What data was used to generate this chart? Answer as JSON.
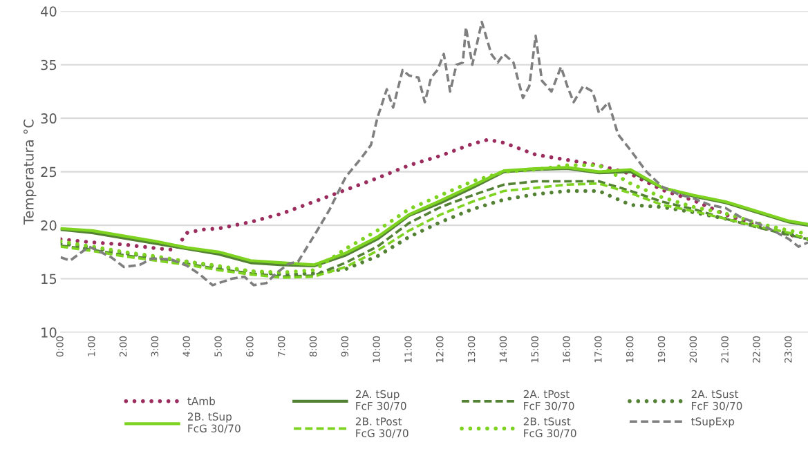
{
  "chart_data": {
    "type": "line",
    "ylabel": "Temperatura °C",
    "x": [
      0,
      1,
      2,
      3,
      4,
      5,
      6,
      7,
      8,
      9,
      10,
      11,
      12,
      13,
      14,
      15,
      16,
      17,
      18,
      19,
      20,
      21,
      22,
      23,
      23.6
    ],
    "xlim": [
      0,
      23.6
    ],
    "xticks": [
      {
        "value": 0,
        "label": "0:00"
      },
      {
        "value": 1,
        "label": "1:00"
      },
      {
        "value": 2,
        "label": "2:00"
      },
      {
        "value": 3,
        "label": "3:00"
      },
      {
        "value": 4,
        "label": "4:00"
      },
      {
        "value": 5,
        "label": "5:00"
      },
      {
        "value": 6,
        "label": "6:00"
      },
      {
        "value": 7,
        "label": "7:00"
      },
      {
        "value": 8,
        "label": "8:00"
      },
      {
        "value": 9,
        "label": "9:00"
      },
      {
        "value": 10,
        "label": "10:00"
      },
      {
        "value": 11,
        "label": "11:00"
      },
      {
        "value": 12,
        "label": "12:00"
      },
      {
        "value": 13,
        "label": "13:00"
      },
      {
        "value": 14,
        "label": "14:00"
      },
      {
        "value": 15,
        "label": "15:00"
      },
      {
        "value": 16,
        "label": "16:00"
      },
      {
        "value": 17,
        "label": "17:00"
      },
      {
        "value": 18,
        "label": "18:00"
      },
      {
        "value": 19,
        "label": "19:00"
      },
      {
        "value": 20,
        "label": "20:00"
      },
      {
        "value": 21,
        "label": "21:00"
      },
      {
        "value": 22,
        "label": "22:00"
      },
      {
        "value": 23,
        "label": "23:00"
      }
    ],
    "ylim": [
      10,
      40
    ],
    "yticks": [
      10,
      15,
      20,
      25,
      30,
      35,
      40
    ],
    "grid": "y",
    "legend": "bottom",
    "series": [
      {
        "name": "tAmb",
        "color": "#9b2d5e",
        "line_style": "dotted",
        "x": [
          0,
          1,
          2,
          3,
          3.6,
          4,
          4.5,
          5,
          6,
          7,
          8,
          9,
          10,
          11,
          12,
          13,
          13.5,
          14,
          15,
          16,
          17,
          18,
          19,
          20,
          21,
          22,
          23,
          23.6
        ],
        "values": [
          18.7,
          18.4,
          18.2,
          17.85,
          17.7,
          19.3,
          19.6,
          19.7,
          20.3,
          21.1,
          22.2,
          23.3,
          24.4,
          25.6,
          26.5,
          27.6,
          28.0,
          27.7,
          26.6,
          26.1,
          25.6,
          24.8,
          23.3,
          22.3,
          21.0,
          20.0,
          19.1,
          18.8
        ]
      },
      {
        "name": "2A. tSup\nFcF 30/70",
        "color": "#548235",
        "line_style": "solid",
        "values": [
          19.6,
          19.3,
          18.8,
          18.3,
          17.8,
          17.3,
          16.5,
          16.3,
          16.2,
          17.2,
          18.7,
          20.9,
          22.1,
          23.5,
          25.0,
          25.2,
          25.3,
          24.9,
          25.0,
          23.5,
          22.7,
          22.1,
          21.2,
          20.3,
          20.0
        ]
      },
      {
        "name": "2A. tPost\nFcF 30/70",
        "color": "#548235",
        "line_style": "dashed",
        "values": [
          18.1,
          17.7,
          17.2,
          16.8,
          16.4,
          15.9,
          15.5,
          15.2,
          15.3,
          16.5,
          18.0,
          20.2,
          21.7,
          22.8,
          23.8,
          24.1,
          24.1,
          24.1,
          23.2,
          22.2,
          21.5,
          20.6,
          19.8,
          19.1,
          18.7
        ]
      },
      {
        "name": "2A. tSust\nFcF 30/70",
        "color": "#548235",
        "line_style": "dotted",
        "values": [
          18.3,
          17.9,
          17.4,
          17.0,
          16.6,
          16.1,
          15.7,
          15.4,
          15.5,
          15.9,
          17.1,
          18.9,
          20.3,
          21.5,
          22.4,
          22.9,
          23.2,
          23.2,
          21.9,
          21.7,
          21.2,
          20.6,
          19.9,
          19.2,
          18.7
        ]
      },
      {
        "name": "2B. tSup\nFcG 30/70",
        "color": "#7ed321",
        "line_style": "solid",
        "values": [
          19.7,
          19.5,
          19.0,
          18.5,
          17.9,
          17.5,
          16.7,
          16.5,
          16.3,
          17.4,
          18.9,
          21.0,
          22.3,
          23.7,
          25.1,
          25.3,
          25.4,
          25.0,
          25.2,
          23.5,
          22.8,
          22.2,
          21.3,
          20.4,
          20.1
        ]
      },
      {
        "name": "2B. tPost\nFcG 30/70",
        "color": "#7ed321",
        "line_style": "dashed",
        "values": [
          18.0,
          17.6,
          17.1,
          16.7,
          16.3,
          15.8,
          15.4,
          15.1,
          15.2,
          16.1,
          17.6,
          19.5,
          21.0,
          22.2,
          23.2,
          23.5,
          23.8,
          23.9,
          23.0,
          21.9,
          21.3,
          20.6,
          19.9,
          19.3,
          18.7
        ]
      },
      {
        "name": "2B. tSust\nFcG 30/70",
        "color": "#7ed321",
        "line_style": "dotted",
        "values": [
          18.5,
          18.0,
          17.5,
          17.1,
          16.6,
          16.2,
          15.7,
          15.6,
          15.8,
          17.8,
          19.5,
          21.5,
          22.8,
          24.1,
          25.0,
          25.2,
          25.6,
          25.6,
          23.9,
          22.6,
          21.7,
          21.1,
          20.2,
          19.5,
          19.2
        ]
      },
      {
        "name": "tSupExp",
        "color": "#7f7f7f",
        "line_style": "dashed",
        "x": [
          0,
          0.3,
          0.9,
          1.2,
          1.6,
          2.0,
          2.5,
          2.9,
          3.5,
          4.0,
          4.4,
          4.8,
          5.4,
          5.8,
          6.1,
          6.5,
          6.8,
          7.2,
          7.5,
          8.0,
          8.5,
          9.0,
          9.5,
          9.8,
          10.0,
          10.3,
          10.5,
          10.8,
          11.0,
          11.3,
          11.5,
          11.7,
          11.9,
          12.1,
          12.3,
          12.5,
          12.7,
          12.8,
          13.0,
          13.3,
          13.6,
          13.8,
          14.0,
          14.3,
          14.6,
          14.8,
          15.0,
          15.2,
          15.5,
          15.8,
          16.0,
          16.2,
          16.5,
          16.8,
          17.0,
          17.3,
          17.6,
          18.0,
          18.5,
          19.0,
          19.5,
          20.0,
          20.5,
          21.0,
          21.5,
          22.0,
          22.5,
          23.0,
          23.3,
          23.6
        ],
        "values": [
          17.0,
          16.7,
          18.0,
          17.6,
          17.0,
          16.1,
          16.3,
          16.9,
          16.8,
          16.2,
          15.4,
          14.4,
          15.0,
          15.2,
          14.4,
          14.6,
          15.5,
          16.4,
          16.6,
          19.0,
          21.5,
          24.5,
          26.3,
          27.5,
          30.0,
          32.7,
          31.0,
          34.5,
          34.0,
          33.8,
          31.5,
          33.8,
          34.5,
          36.0,
          32.5,
          35.0,
          35.2,
          38.5,
          35.0,
          39.0,
          36.0,
          35.2,
          36.0,
          35.2,
          31.9,
          33.0,
          37.7,
          33.5,
          32.5,
          34.8,
          33.0,
          31.5,
          33.0,
          32.5,
          30.5,
          31.5,
          28.5,
          27.0,
          25.0,
          23.6,
          22.9,
          22.5,
          21.9,
          21.6,
          20.7,
          20.2,
          19.5,
          18.7,
          18.0,
          18.4
        ]
      }
    ]
  }
}
